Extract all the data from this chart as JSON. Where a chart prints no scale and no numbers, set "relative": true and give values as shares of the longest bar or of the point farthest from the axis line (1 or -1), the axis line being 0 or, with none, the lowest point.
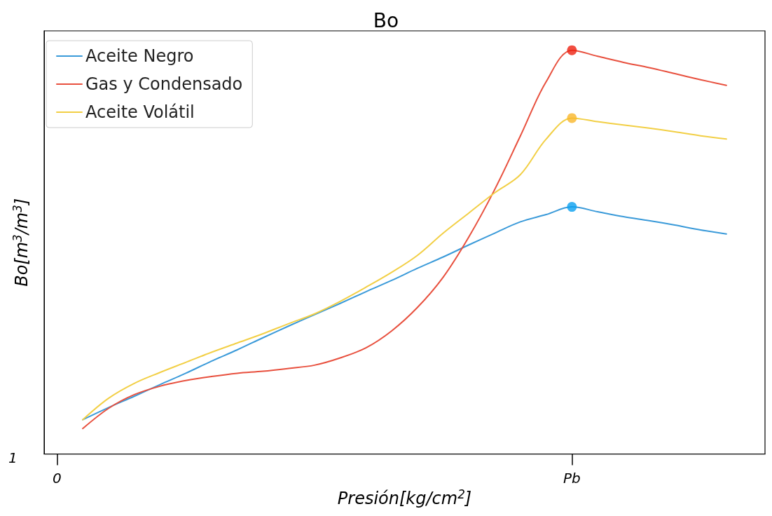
{
  "chart_data": {
    "type": "line",
    "title": "Bo",
    "xlabel": "Presión[kg/cm$^{2}$]",
    "ylabel": "Bo[m$^{3}$/m$^{3}$]",
    "relative": true,
    "categories": [
      "0",
      null,
      null,
      null,
      null,
      null,
      null,
      null,
      null,
      null,
      null,
      null,
      null,
      null,
      null,
      null,
      null,
      null,
      null,
      null,
      "Pb",
      null,
      null,
      null,
      null,
      null,
      null,
      null
    ],
    "annotations": [
      "1"
    ],
    "grid": false,
    "legend": "top left",
    "marker": "none",
    "line_style": "solid",
    "series": [
      {
        "name": "Aceite Negro",
        "color": "#3a9ad9",
        "values": [
          null,
          0.085,
          0.115,
          0.143,
          0.172,
          0.2,
          0.23,
          0.258,
          0.288,
          0.317,
          0.345,
          0.373,
          0.402,
          0.43,
          0.46,
          0.488,
          0.518,
          0.547,
          0.575,
          0.593,
          0.612,
          0.6,
          0.588,
          0.578,
          0.567,
          0.555,
          0.545,
          null
        ]
      },
      {
        "name": "Gas y Condensado",
        "color": "#e8503e",
        "values": [
          null,
          0.063,
          0.113,
          0.147,
          0.168,
          0.182,
          0.192,
          0.2,
          0.205,
          0.212,
          0.22,
          0.238,
          0.263,
          0.305,
          0.363,
          0.438,
          0.538,
          0.655,
          0.788,
          0.922,
          1.0,
          0.985,
          0.97,
          0.957,
          0.942,
          0.927,
          0.913,
          null
        ]
      },
      {
        "name": "Aceite Volátil",
        "color": "#f2cf45",
        "values": [
          null,
          0.085,
          0.138,
          0.175,
          0.202,
          0.227,
          0.252,
          0.275,
          0.298,
          0.323,
          0.347,
          0.378,
          0.413,
          0.45,
          0.492,
          0.547,
          0.597,
          0.647,
          0.692,
          0.78,
          0.832,
          0.823,
          0.815,
          0.807,
          0.798,
          0.788,
          0.78,
          null
        ]
      },
      {
        "type": "scatter",
        "marker": "circle",
        "x": [
          "Pb",
          "Pb",
          "Pb"
        ],
        "values": [
          1.0,
          0.832,
          0.612
        ],
        "colors": [
          "#ee2211",
          "#f9b62a",
          "#0aa0f0"
        ]
      }
    ]
  }
}
